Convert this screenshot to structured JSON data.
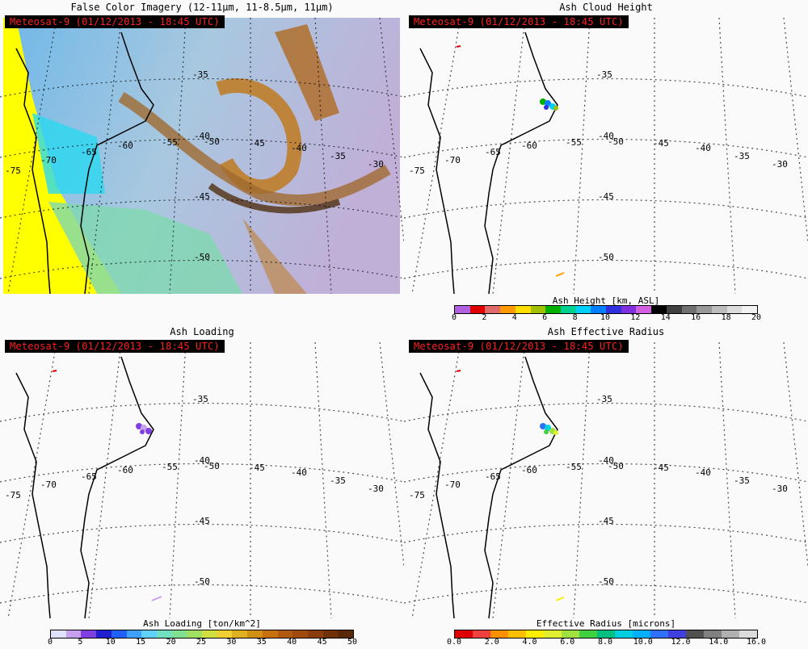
{
  "satellite_stamp": "Meteosat-9  (01/12/2013 - 18:45 UTC)",
  "panels": [
    {
      "title": "False Color Imagery (12-11µm, 11-8.5µm, 11µm)"
    },
    {
      "title": "Ash Cloud Height",
      "colorbar": {
        "label": "Ash Height [km, ASL]",
        "ticks": [
          "0",
          "2",
          "4",
          "6",
          "8",
          "10",
          "12",
          "14",
          "16",
          "18",
          "20"
        ],
        "colors": [
          "#b060e0",
          "#e00000",
          "#e06a6a",
          "#ff9900",
          "#ffdd00",
          "#a0c000",
          "#00b000",
          "#00d090",
          "#00d0ff",
          "#0080ff",
          "#3030e0",
          "#8030e0",
          "#d060e0",
          "#000000",
          "#404040",
          "#707070",
          "#989898",
          "#bcbcbc",
          "#dcdcdc",
          "#f2f2f2"
        ]
      }
    },
    {
      "title": "Ash Loading",
      "colorbar": {
        "label": "Ash Loading [ton/km^2]",
        "ticks": [
          "0",
          "5",
          "10",
          "15",
          "20",
          "25",
          "30",
          "35",
          "40",
          "45",
          "50"
        ],
        "colors": [
          "#e0e0ff",
          "#c8a0f0",
          "#8040e0",
          "#2020d0",
          "#2060ff",
          "#40a0ff",
          "#60d0ff",
          "#70e0c0",
          "#80e090",
          "#a0e060",
          "#d0e040",
          "#f0d030",
          "#e0b020",
          "#d09018",
          "#c87010",
          "#b05a10",
          "#a04a10",
          "#8a3c0c",
          "#703008",
          "#5a2806"
        ]
      }
    },
    {
      "title": "Ash Effective Radius",
      "colorbar": {
        "label": "Effective Radius [microns]",
        "ticks": [
          "0.0",
          "2.0",
          "4.0",
          "6.0",
          "8.0",
          "10.0",
          "12.0",
          "14.0",
          "16.0"
        ],
        "colors": [
          "#e00000",
          "#f04040",
          "#ff9000",
          "#ffc000",
          "#ffee00",
          "#e0f030",
          "#a0e040",
          "#40d040",
          "#00c080",
          "#00d0e0",
          "#00b0ff",
          "#3070ff",
          "#4040e0",
          "#505050",
          "#808080",
          "#b0b0b0",
          "#dcdcdc"
        ]
      }
    }
  ],
  "graticule_labels": {
    "lat": [
      "-35",
      "-40",
      "-45",
      "-50"
    ],
    "lon": [
      "-75",
      "-70",
      "-65",
      "-60",
      "-55",
      "-50",
      "-45",
      "-40",
      "-35",
      "-30"
    ]
  }
}
